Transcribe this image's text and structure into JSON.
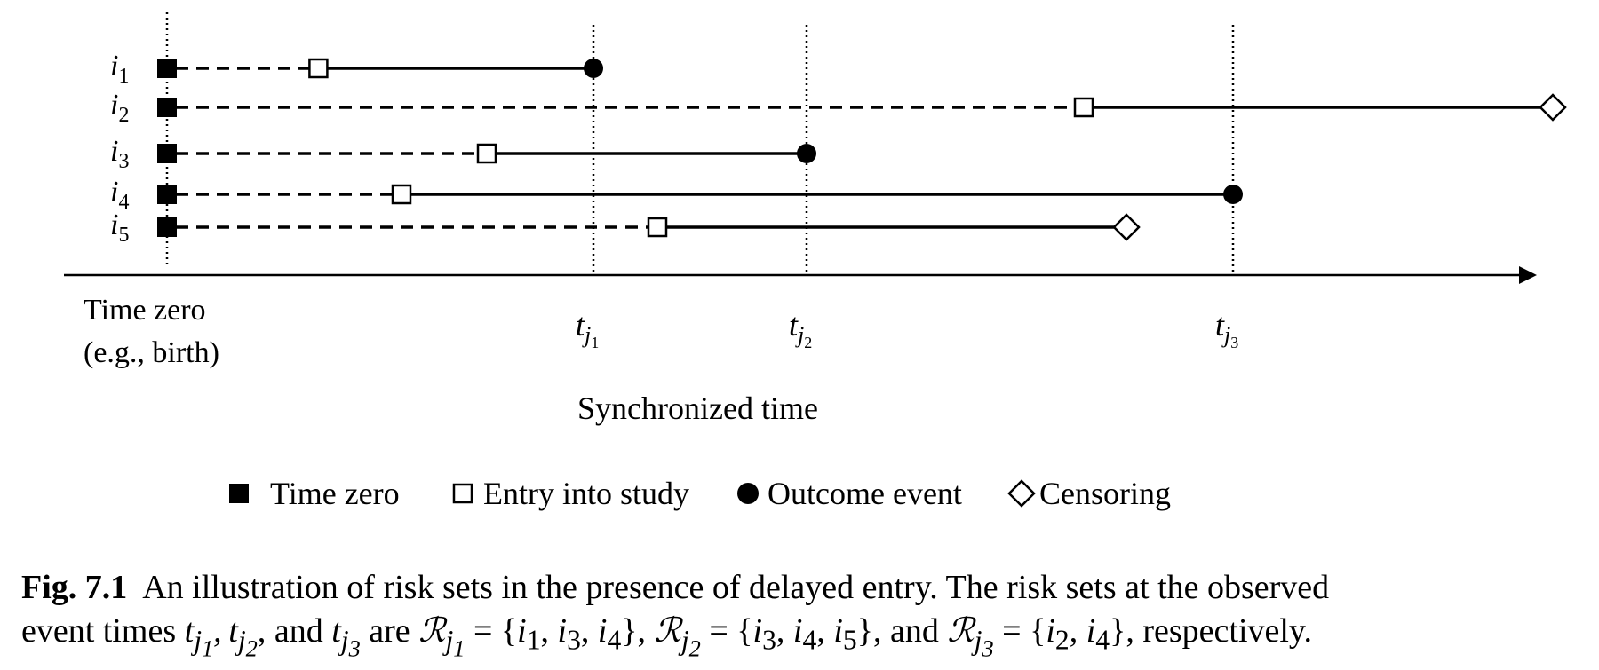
{
  "diagram": {
    "subjects": [
      {
        "label": "i",
        "sub": "1",
        "entry": 0.71,
        "end": 2.0,
        "end_type": "outcome"
      },
      {
        "label": "i",
        "sub": "2",
        "entry": 4.3,
        "end": 6.5,
        "end_type": "censoring"
      },
      {
        "label": "i",
        "sub": "3",
        "entry": 1.5,
        "end": 3.0,
        "end_type": "outcome"
      },
      {
        "label": "i",
        "sub": "4",
        "entry": 1.1,
        "end": 5.0,
        "end_type": "outcome"
      },
      {
        "label": "i",
        "sub": "5",
        "entry": 2.3,
        "end": 4.5,
        "end_type": "censoring"
      }
    ],
    "event_times": [
      {
        "label": "t",
        "sub": "j",
        "subsub": "1",
        "x": 2.0
      },
      {
        "label": "t",
        "sub": "j",
        "subsub": "2",
        "x": 3.0
      },
      {
        "label": "t",
        "sub": "j",
        "subsub": "3",
        "x": 5.0
      }
    ],
    "time_zero_label": [
      "Time zero",
      "(e.g., birth)"
    ],
    "axis_label": "Synchronized time",
    "legend": [
      {
        "symbol": "filled-square",
        "label": "Time zero"
      },
      {
        "symbol": "open-square",
        "label": "Entry into study"
      },
      {
        "symbol": "filled-circle",
        "label": "Outcome event"
      },
      {
        "symbol": "open-diamond",
        "label": "Censoring"
      }
    ]
  },
  "caption": {
    "label": "Fig. 7.1",
    "line1": "An illustration of risk sets in the presence of delayed entry. The risk sets at the observed",
    "line2_a": "event times",
    "line2_b": ", and",
    "line2_c": "are",
    "line2_d": ", and",
    "line2_e": ", respectively."
  }
}
